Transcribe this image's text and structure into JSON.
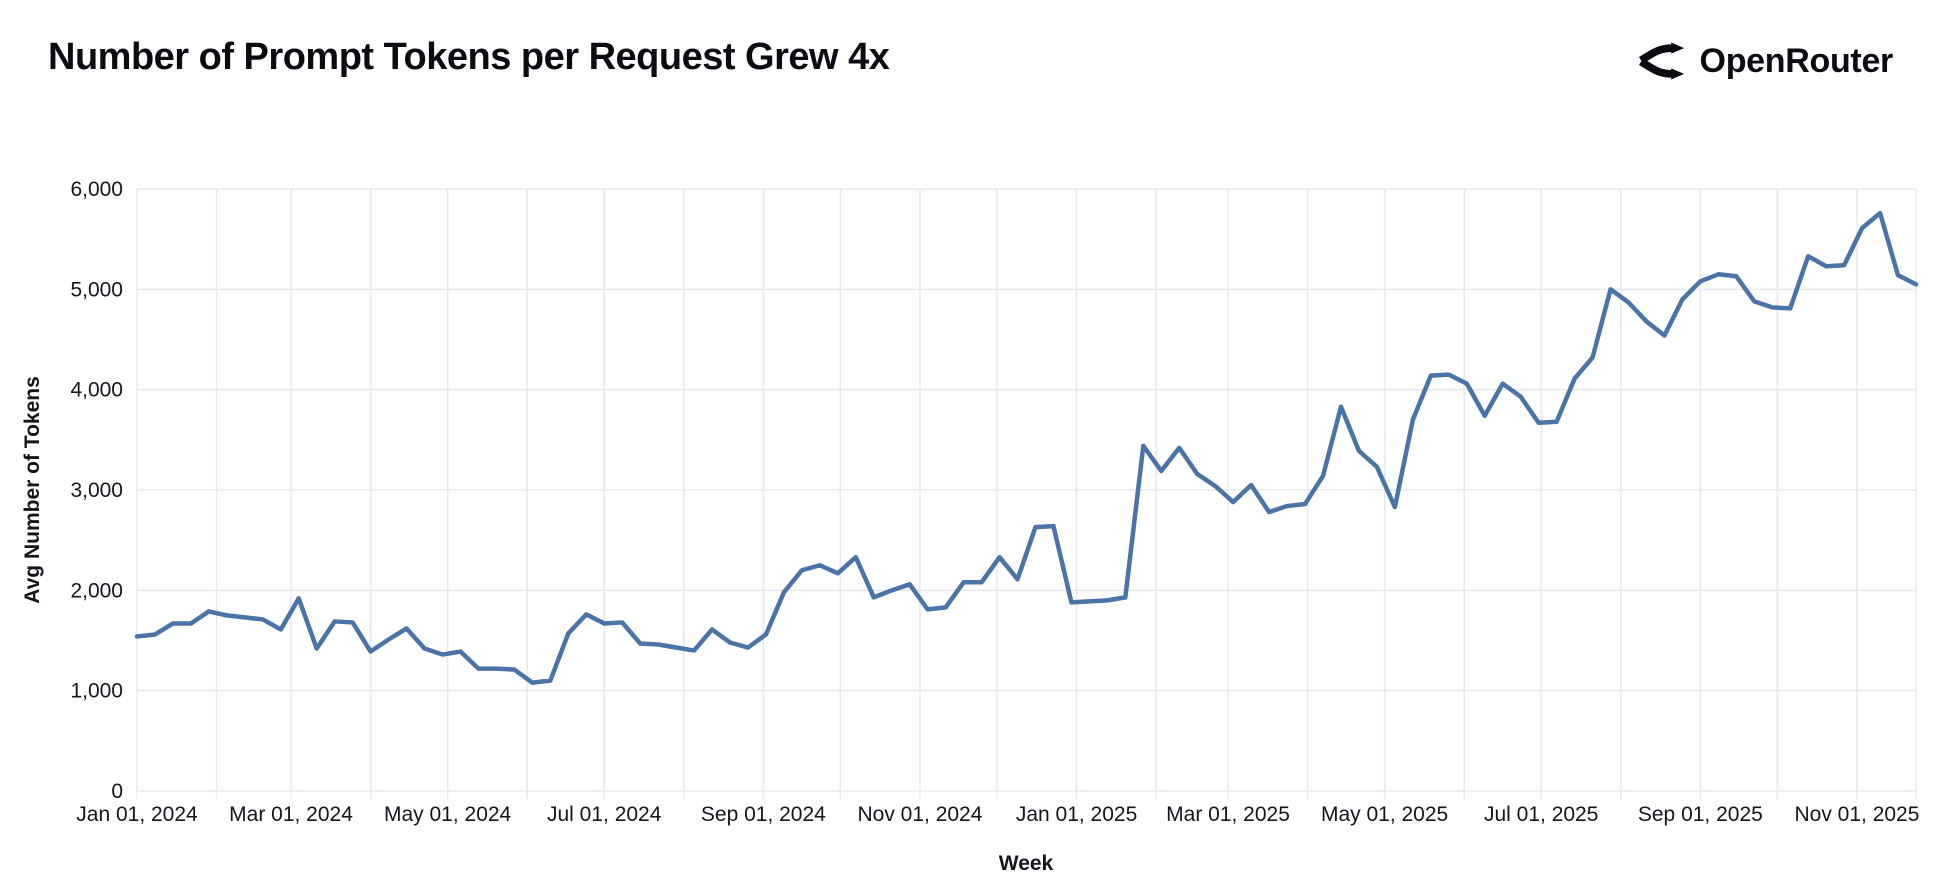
{
  "header": {
    "title": "Number of Prompt Tokens per Request Grew 4x",
    "brand": "OpenRouter"
  },
  "chart_data": {
    "type": "line",
    "title": "Number of Prompt Tokens per Request Grew 4x",
    "xlabel": "Week",
    "ylabel": "Avg Number of Tokens",
    "ylim": [
      0,
      6000
    ],
    "grid": true,
    "legend": "none",
    "line_color": "#4a73a8",
    "grid_color": "#e8e8f0",
    "text_color": "#15151e",
    "y_ticks": [
      {
        "value": 0,
        "label": "0"
      },
      {
        "value": 1000,
        "label": "1,000"
      },
      {
        "value": 2000,
        "label": "2,000"
      },
      {
        "value": 3000,
        "label": "3,000"
      },
      {
        "value": 4000,
        "label": "4,000"
      },
      {
        "value": 5000,
        "label": "5,000"
      },
      {
        "value": 6000,
        "label": "6,000"
      }
    ],
    "x_total_days": 693,
    "x_ticks": [
      {
        "day": 0,
        "label": "Jan 01, 2024"
      },
      {
        "day": 60,
        "label": "Mar 01, 2024"
      },
      {
        "day": 121,
        "label": "May 01, 2024"
      },
      {
        "day": 182,
        "label": "Jul 01, 2024"
      },
      {
        "day": 244,
        "label": "Sep 01, 2024"
      },
      {
        "day": 305,
        "label": "Nov 01, 2024"
      },
      {
        "day": 366,
        "label": "Jan 01, 2025"
      },
      {
        "day": 425,
        "label": "Mar 01, 2025"
      },
      {
        "day": 486,
        "label": "May 01, 2025"
      },
      {
        "day": 547,
        "label": "Jul 01, 2025"
      },
      {
        "day": 609,
        "label": "Sep 01, 2025"
      },
      {
        "day": 670,
        "label": "Nov 01, 2025"
      }
    ],
    "x_gridline_days": [
      0,
      31,
      60,
      91,
      121,
      152,
      182,
      213,
      244,
      274,
      305,
      335,
      366,
      397,
      425,
      456,
      486,
      517,
      547,
      578,
      609,
      639,
      670,
      693
    ],
    "series": [
      {
        "name": "avg-prompt-tokens-per-request",
        "start_label": "Jan 01, 2024",
        "interval_days": 7,
        "values": [
          1540,
          1560,
          1670,
          1670,
          1790,
          1750,
          1730,
          1710,
          1610,
          1920,
          1420,
          1690,
          1680,
          1390,
          1510,
          1620,
          1420,
          1360,
          1390,
          1220,
          1220,
          1210,
          1080,
          1100,
          1570,
          1760,
          1670,
          1680,
          1470,
          1460,
          1430,
          1400,
          1610,
          1480,
          1430,
          1560,
          1980,
          2200,
          2250,
          2170,
          2330,
          1930,
          2000,
          2060,
          1810,
          1830,
          2080,
          2080,
          2330,
          2110,
          2630,
          2640,
          1880,
          1890,
          1900,
          1930,
          3440,
          3190,
          3420,
          3160,
          3040,
          2880,
          3050,
          2780,
          2840,
          2860,
          3140,
          3830,
          3390,
          3230,
          2830,
          3700,
          4140,
          4150,
          4060,
          3740,
          4060,
          3930,
          3670,
          3680,
          4110,
          4320,
          5000,
          4870,
          4680,
          4540,
          4900,
          5080,
          5150,
          5130,
          4880,
          4820,
          4810,
          5330,
          5230,
          5240,
          5610,
          5760,
          5140,
          5050
        ]
      }
    ]
  }
}
